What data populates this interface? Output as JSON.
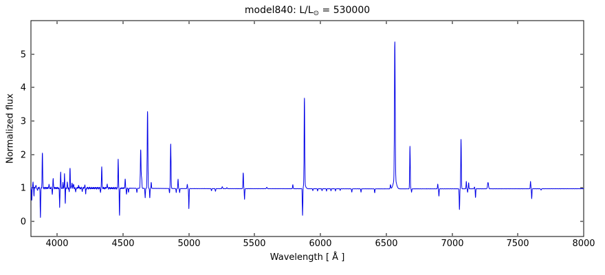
{
  "header": {
    "title_prefix": "model840: L/L",
    "title_sub": "⊙",
    "title_suffix": " = 530000"
  },
  "chart_data": {
    "type": "line",
    "title": "model840: L/L⊙ = 530000",
    "xlabel": "Wavelength [ Å ]",
    "ylabel": "Normalized flux",
    "xlim": [
      3800,
      8000
    ],
    "ylim": [
      -0.45,
      6.0
    ],
    "xticks": [
      4000,
      4500,
      5000,
      5500,
      6000,
      6500,
      7000,
      7500,
      8000
    ],
    "yticks": [
      0,
      1,
      2,
      3,
      4,
      5
    ],
    "grid": false,
    "legend": null,
    "line_color": "#0000e6",
    "background": "#ffffff",
    "series_description": "normalized stellar spectrum: flat continuum at ~1.0 with narrow emission lines and absorption dips; encoded as gaussian features [wavelength_A, amplitude_rel_continuum, sigma_A]",
    "continuum_points": [
      [
        3800,
        1.0
      ],
      [
        4500,
        0.993
      ],
      [
        5000,
        0.98
      ],
      [
        5800,
        0.978
      ],
      [
        6500,
        0.974
      ],
      [
        8000,
        0.978
      ]
    ],
    "noise": {
      "base": 0.004,
      "left_amplitude": 0.03,
      "fade_start": 4450,
      "fade_end": 4570
    },
    "features": [
      [
        3806,
        -0.38,
        1.6
      ],
      [
        3816,
        0.18,
        1.6
      ],
      [
        3823,
        -0.22,
        1.5
      ],
      [
        3838,
        0.1,
        2.0
      ],
      [
        3849,
        -0.08,
        2.0
      ],
      [
        3872,
        -0.87,
        1.9
      ],
      [
        3887,
        1.07,
        2.1
      ],
      [
        3937,
        0.1,
        2.0
      ],
      [
        3962,
        -0.18,
        1.8
      ],
      [
        3969,
        0.28,
        1.9
      ],
      [
        4018,
        -0.58,
        1.7
      ],
      [
        4026,
        0.5,
        1.8
      ],
      [
        4043,
        0.15,
        1.6
      ],
      [
        4055,
        0.45,
        1.6
      ],
      [
        4061,
        -0.45,
        1.5
      ],
      [
        4076,
        0.18,
        1.6
      ],
      [
        4091,
        -0.12,
        1.5
      ],
      [
        4097,
        0.62,
        1.9
      ],
      [
        4112,
        0.15,
        2.2
      ],
      [
        4124,
        0.12,
        2.0
      ],
      [
        4140,
        -0.12,
        1.8
      ],
      [
        4162,
        0.08,
        2.0
      ],
      [
        4190,
        -0.1,
        1.8
      ],
      [
        4209,
        0.1,
        1.9
      ],
      [
        4216,
        -0.18,
        1.7
      ],
      [
        4329,
        -0.12,
        1.9
      ],
      [
        4338,
        0.62,
        2.1
      ],
      [
        4379,
        0.1,
        2.6
      ],
      [
        4463,
        0.86,
        2.0
      ],
      [
        4473,
        -0.81,
        1.8
      ],
      [
        4516,
        0.28,
        2.0
      ],
      [
        4526,
        -0.18,
        1.8
      ],
      [
        4541,
        -0.12,
        1.9
      ],
      [
        4605,
        -0.12,
        2.0
      ],
      [
        4634,
        1.15,
        2.6
      ],
      [
        4641,
        0.3,
        2.2
      ],
      [
        4668,
        -0.28,
        1.9
      ],
      [
        4686,
        2.3,
        2.6
      ],
      [
        4703,
        -0.28,
        1.8
      ],
      [
        4714,
        0.18,
        1.8
      ],
      [
        4853,
        -0.13,
        2.0
      ],
      [
        4862,
        1.33,
        2.4
      ],
      [
        4904,
        -0.12,
        1.8
      ],
      [
        4918,
        0.28,
        1.9
      ],
      [
        4930,
        -0.12,
        1.8
      ],
      [
        4988,
        0.13,
        2.0
      ],
      [
        5000,
        -0.6,
        1.8
      ],
      [
        5172,
        -0.06,
        2.0
      ],
      [
        5202,
        -0.08,
        2.0
      ],
      [
        5254,
        0.06,
        2.6
      ],
      [
        5289,
        0.03,
        2.5
      ],
      [
        5413,
        0.47,
        2.1
      ],
      [
        5423,
        -0.32,
        1.8
      ],
      [
        5592,
        0.04,
        3.0
      ],
      [
        5790,
        0.12,
        2.1
      ],
      [
        5864,
        -0.83,
        2.0
      ],
      [
        5878,
        2.6,
        2.3
      ],
      [
        5878,
        0.12,
        9.0
      ],
      [
        5942,
        -0.06,
        1.6
      ],
      [
        5978,
        -0.07,
        1.6
      ],
      [
        6012,
        -0.06,
        1.6
      ],
      [
        6046,
        -0.07,
        1.6
      ],
      [
        6080,
        -0.06,
        1.6
      ],
      [
        6114,
        -0.07,
        1.6
      ],
      [
        6150,
        -0.05,
        1.6
      ],
      [
        6238,
        -0.1,
        1.9
      ],
      [
        6308,
        -0.1,
        1.9
      ],
      [
        6412,
        -0.12,
        1.9
      ],
      [
        6532,
        0.12,
        2.4
      ],
      [
        6565,
        4.1,
        2.8
      ],
      [
        6565,
        0.3,
        11.0
      ],
      [
        6680,
        1.27,
        2.2
      ],
      [
        6692,
        -0.1,
        1.8
      ],
      [
        6891,
        0.14,
        2.0
      ],
      [
        6900,
        -0.22,
        1.8
      ],
      [
        7056,
        -0.62,
        2.0
      ],
      [
        7068,
        1.48,
        2.2
      ],
      [
        7108,
        0.22,
        1.8
      ],
      [
        7118,
        -0.1,
        1.6
      ],
      [
        7126,
        0.18,
        1.8
      ],
      [
        7170,
        0.05,
        2.0
      ],
      [
        7178,
        -0.26,
        1.8
      ],
      [
        7273,
        0.19,
        3.6
      ],
      [
        7596,
        0.22,
        2.0
      ],
      [
        7605,
        -0.3,
        1.8
      ],
      [
        7676,
        -0.04,
        2.5
      ]
    ]
  }
}
